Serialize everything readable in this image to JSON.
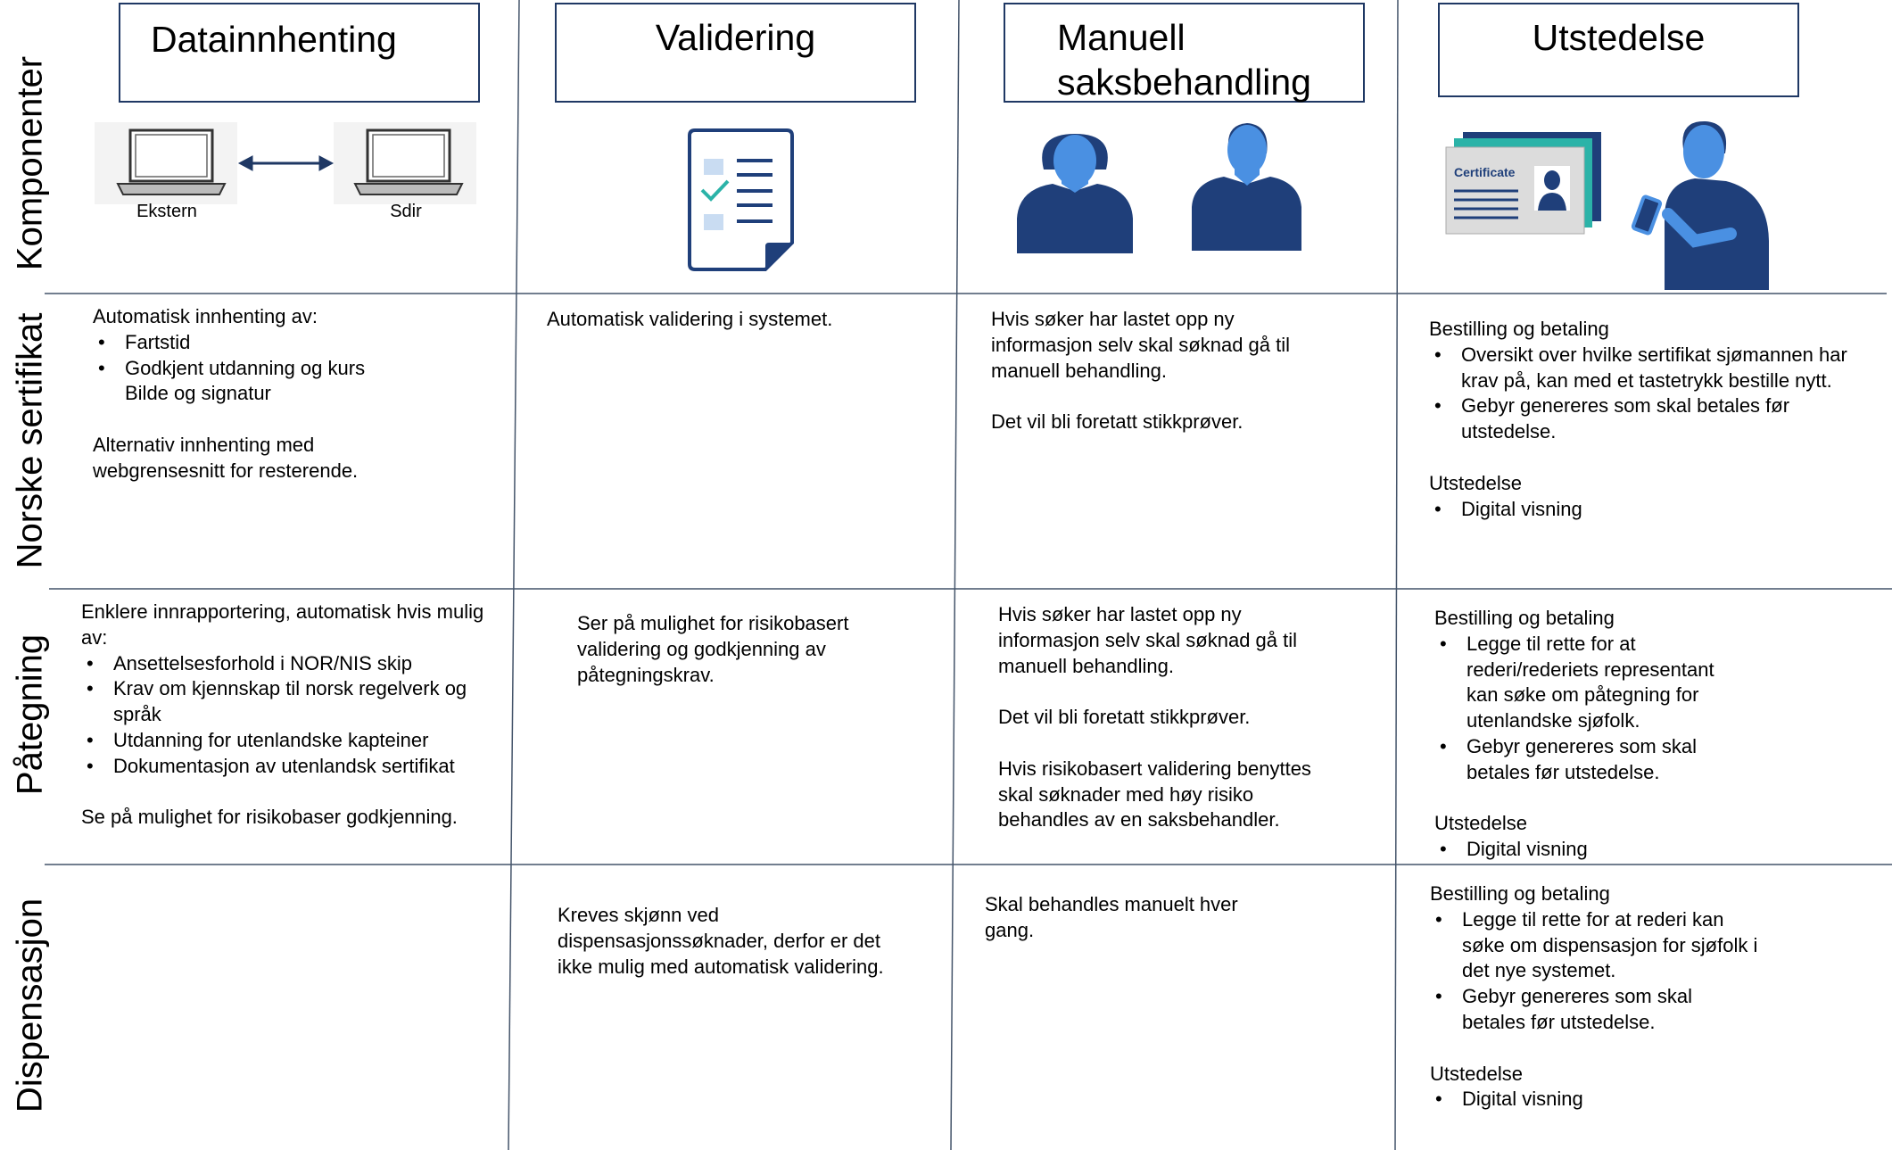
{
  "columns": [
    {
      "title": "Datainnhenting"
    },
    {
      "title": "Validering"
    },
    {
      "title": "Manuell saksbehandling"
    },
    {
      "title": "Utstedelse"
    }
  ],
  "components": {
    "laptop_labels": [
      "Ekstern",
      "Sdir"
    ],
    "certificate_label": "Certificate"
  },
  "rows": [
    {
      "label": "Komponenter"
    },
    {
      "label": "Norske sertifikat",
      "cells": [
        [
          {
            "p": "Automatisk innhenting av:"
          },
          {
            "ul": [
              "Fartstid",
              "Godkjent utdanning og kurs"
            ]
          },
          {
            "cont": "Bilde og signatur"
          },
          {
            "p": "Alternativ innhenting med webgrensesnitt for resterende."
          }
        ],
        [
          {
            "p": "Automatisk validering i systemet."
          }
        ],
        [
          {
            "p": "Hvis søker har lastet opp ny informasjon selv skal søknad gå til manuell behandling."
          },
          {
            "p": "Det vil bli foretatt stikkprøver."
          }
        ],
        [
          {
            "p": "Bestilling og betaling"
          },
          {
            "ul": [
              "Oversikt over hvilke sertifikat sjømannen har krav på, kan med et tastetrykk bestille nytt.",
              "Gebyr genereres som skal betales før utstedelse."
            ]
          },
          {
            "p": "Utstedelse"
          },
          {
            "ul": [
              "Digital visning"
            ]
          }
        ]
      ]
    },
    {
      "label": "Påtegning",
      "cells": [
        [
          {
            "p": "Enklere innrapportering, automatisk hvis mulig av:"
          },
          {
            "ul": [
              "Ansettelsesforhold i NOR/NIS skip",
              "Krav om kjennskap til norsk regelverk og språk",
              "Utdanning for utenlandske kapteiner",
              "Dokumentasjon av utenlandsk sertifikat"
            ]
          },
          {
            "p": "Se på mulighet for risikobaser godkjenning."
          }
        ],
        [
          {
            "p": "Ser på mulighet for risikobasert validering og godkjenning av påtegningskrav."
          }
        ],
        [
          {
            "p": "Hvis søker har lastet opp ny informasjon selv skal søknad gå til manuell behandling."
          },
          {
            "p": "Det vil bli foretatt stikkprøver."
          },
          {
            "p": "Hvis risikobasert validering benyttes skal søknader med høy risiko behandles av en saksbehandler."
          }
        ],
        [
          {
            "p": "Bestilling og betaling"
          },
          {
            "ul": [
              "Legge til rette for at rederi/rederiets representant kan søke om påtegning for utenlandske sjøfolk.",
              "Gebyr genereres som skal betales før utstedelse."
            ]
          },
          {
            "p": "Utstedelse"
          },
          {
            "ul": [
              "Digital visning"
            ]
          }
        ]
      ]
    },
    {
      "label": "Dispensasjon",
      "cells": [
        [],
        [
          {
            "p": "Kreves skjønn ved dispensasjonssøknader, derfor er det ikke mulig med automatisk validering."
          }
        ],
        [
          {
            "p": "Skal behandles manuelt hver gang."
          }
        ],
        [
          {
            "p": "Bestilling og betaling"
          },
          {
            "ul": [
              "Legge til rette for at rederi kan søke om dispensasjon for sjøfolk i det nye systemet.",
              "Gebyr genereres som skal betales før utstedelse."
            ]
          },
          {
            "p": "Utstedelse"
          },
          {
            "ul": [
              "Digital visning"
            ]
          }
        ]
      ]
    }
  ]
}
